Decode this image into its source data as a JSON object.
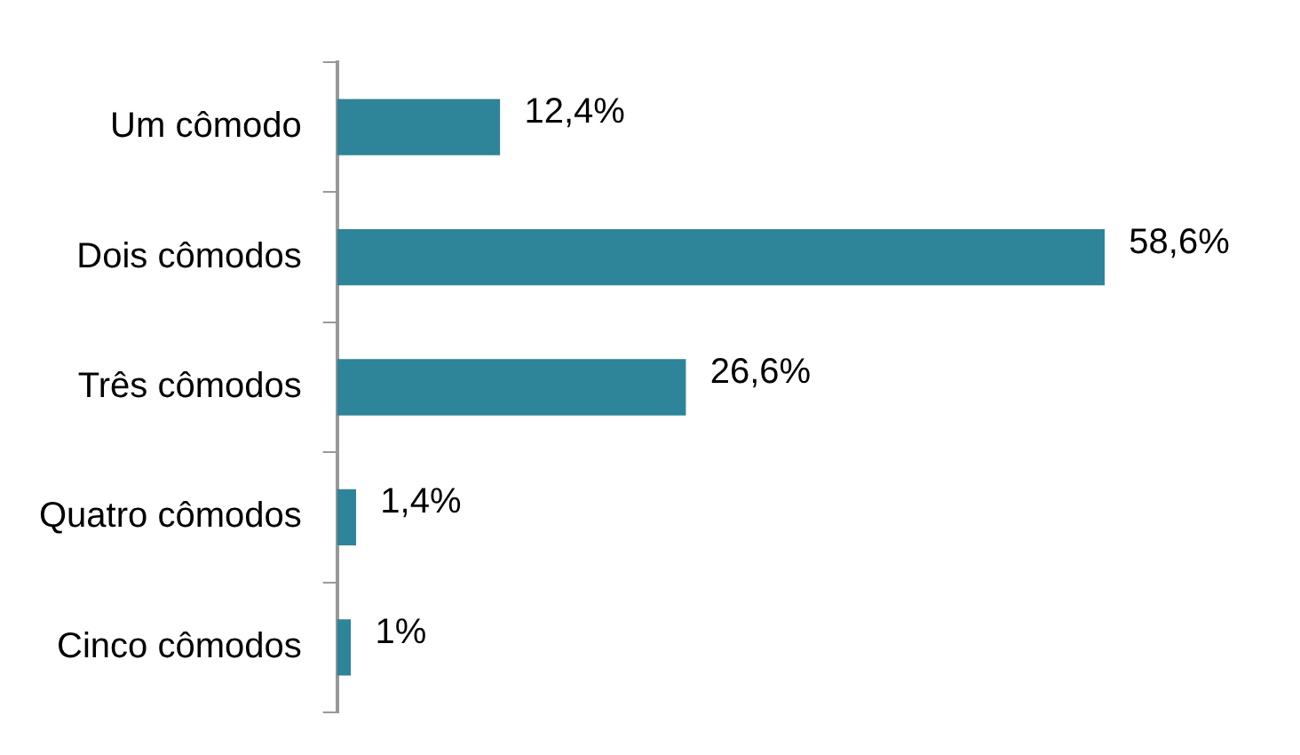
{
  "chart_data": {
    "type": "bar",
    "orientation": "horizontal",
    "categories": [
      "Um cômodo",
      "Dois cômodos",
      "Três cômodos",
      "Quatro cômodos",
      "Cinco cômodos"
    ],
    "values": [
      12.4,
      58.6,
      26.6,
      1.4,
      1
    ],
    "value_labels": [
      "12,4%",
      "58,6%",
      "26,6%",
      "1,4%",
      "1%"
    ],
    "color": "#2e8498"
  }
}
